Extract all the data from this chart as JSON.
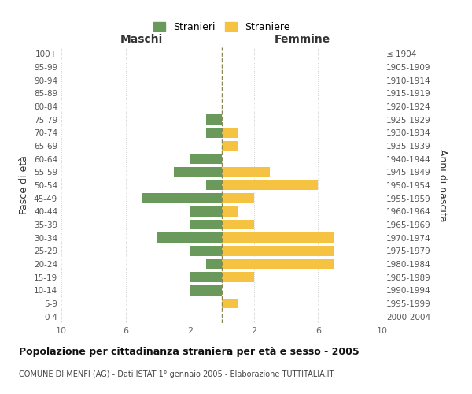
{
  "age_groups": [
    "0-4",
    "5-9",
    "10-14",
    "15-19",
    "20-24",
    "25-29",
    "30-34",
    "35-39",
    "40-44",
    "45-49",
    "50-54",
    "55-59",
    "60-64",
    "65-69",
    "70-74",
    "75-79",
    "80-84",
    "85-89",
    "90-94",
    "95-99",
    "100+"
  ],
  "birth_years": [
    "2000-2004",
    "1995-1999",
    "1990-1994",
    "1985-1989",
    "1980-1984",
    "1975-1979",
    "1970-1974",
    "1965-1969",
    "1960-1964",
    "1955-1959",
    "1950-1954",
    "1945-1949",
    "1940-1944",
    "1935-1939",
    "1930-1934",
    "1925-1929",
    "1920-1924",
    "1915-1919",
    "1910-1914",
    "1905-1909",
    "≤ 1904"
  ],
  "males": [
    0,
    0,
    2,
    2,
    1,
    2,
    4,
    2,
    2,
    5,
    1,
    3,
    2,
    0,
    1,
    1,
    0,
    0,
    0,
    0,
    0
  ],
  "females": [
    0,
    1,
    0,
    2,
    7,
    7,
    7,
    2,
    1,
    2,
    6,
    3,
    0,
    1,
    1,
    0,
    0,
    0,
    0,
    0,
    0
  ],
  "male_color": "#6a9a5b",
  "female_color": "#f5c242",
  "title": "Popolazione per cittadinanza straniera per età e sesso - 2005",
  "subtitle": "COMUNE DI MENFI (AG) - Dati ISTAT 1° gennaio 2005 - Elaborazione TUTTITALIA.IT",
  "xlabel_left": "Maschi",
  "xlabel_right": "Femmine",
  "ylabel_left": "Fasce di età",
  "ylabel_right": "Anni di nascita",
  "legend_male": "Stranieri",
  "legend_female": "Straniere",
  "xlim": 10,
  "background_color": "#ffffff",
  "grid_color": "#d0d0d0"
}
